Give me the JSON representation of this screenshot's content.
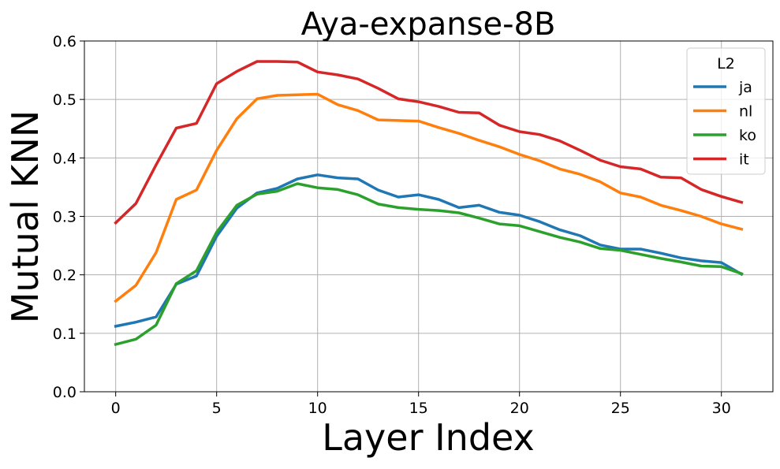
{
  "chart_data": {
    "type": "line",
    "title": "Aya-expanse-8B",
    "xlabel": "Layer Index",
    "ylabel": "Mutual KNN",
    "xlim": [
      -1.55,
      32.55
    ],
    "ylim": [
      0.0,
      0.6
    ],
    "xticks": [
      0,
      5,
      10,
      15,
      20,
      25,
      30
    ],
    "xtick_labels": [
      "0",
      "5",
      "10",
      "15",
      "20",
      "25",
      "30"
    ],
    "yticks": [
      0.0,
      0.1,
      0.2,
      0.3,
      0.4,
      0.5,
      0.6
    ],
    "ytick_labels": [
      "0.0",
      "0.1",
      "0.2",
      "0.3",
      "0.4",
      "0.5",
      "0.6"
    ],
    "grid": true,
    "legend": {
      "title": "L2",
      "placement": "top-right"
    },
    "x": [
      0,
      1,
      2,
      3,
      4,
      5,
      6,
      7,
      8,
      9,
      10,
      11,
      12,
      13,
      14,
      15,
      16,
      17,
      18,
      19,
      20,
      21,
      22,
      23,
      24,
      25,
      26,
      27,
      28,
      29,
      30,
      31
    ],
    "series": [
      {
        "name": "ja",
        "color": "#1f77b4",
        "values": [
          0.112,
          0.119,
          0.128,
          0.184,
          0.198,
          0.266,
          0.314,
          0.34,
          0.348,
          0.364,
          0.371,
          0.366,
          0.364,
          0.345,
          0.333,
          0.337,
          0.329,
          0.315,
          0.319,
          0.307,
          0.302,
          0.291,
          0.277,
          0.267,
          0.251,
          0.244,
          0.244,
          0.237,
          0.229,
          0.224,
          0.221,
          0.201
        ]
      },
      {
        "name": "nl",
        "color": "#ff7f0e",
        "values": [
          0.155,
          0.182,
          0.238,
          0.329,
          0.345,
          0.413,
          0.467,
          0.501,
          0.507,
          0.508,
          0.509,
          0.491,
          0.481,
          0.465,
          0.464,
          0.463,
          0.452,
          0.442,
          0.43,
          0.419,
          0.406,
          0.395,
          0.381,
          0.372,
          0.359,
          0.34,
          0.333,
          0.319,
          0.31,
          0.3,
          0.287,
          0.278
        ]
      },
      {
        "name": "ko",
        "color": "#2ca02c",
        "values": [
          0.081,
          0.09,
          0.114,
          0.185,
          0.207,
          0.273,
          0.319,
          0.338,
          0.343,
          0.356,
          0.349,
          0.346,
          0.337,
          0.321,
          0.315,
          0.312,
          0.31,
          0.306,
          0.297,
          0.287,
          0.284,
          0.274,
          0.264,
          0.256,
          0.245,
          0.242,
          0.235,
          0.228,
          0.222,
          0.215,
          0.214,
          0.202
        ]
      },
      {
        "name": "it",
        "color": "#d62728",
        "values": [
          0.289,
          0.322,
          0.388,
          0.451,
          0.459,
          0.527,
          0.548,
          0.565,
          0.565,
          0.564,
          0.547,
          0.542,
          0.535,
          0.519,
          0.501,
          0.496,
          0.488,
          0.478,
          0.477,
          0.456,
          0.445,
          0.44,
          0.429,
          0.413,
          0.396,
          0.385,
          0.381,
          0.367,
          0.366,
          0.346,
          0.334,
          0.324
        ]
      }
    ]
  }
}
